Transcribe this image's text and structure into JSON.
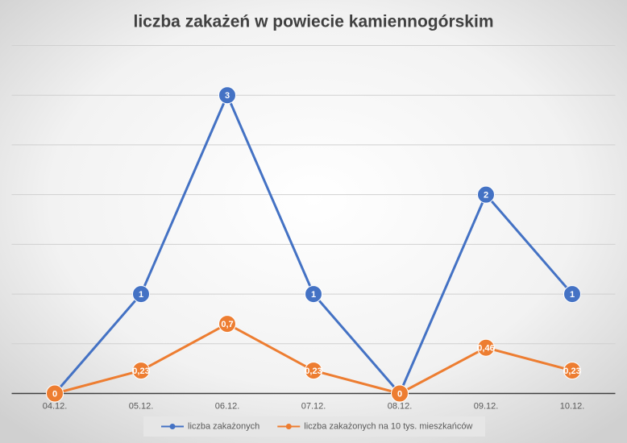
{
  "chart_data": {
    "type": "line",
    "title": "liczba zakażeń w powiecie kamiennogórskim",
    "categories": [
      "04.12.",
      "05.12.",
      "06.12.",
      "07.12.",
      "08.12.",
      "09.12.",
      "10.12."
    ],
    "series": [
      {
        "name": "liczba zakażonych",
        "color": "#4472c4",
        "values": [
          0,
          1,
          3,
          1,
          0,
          2,
          1
        ]
      },
      {
        "name": "liczba zakażonych na 10 tys. mieszkańców",
        "color": "#ed7d31",
        "values": [
          0,
          0.23,
          0.7,
          0.23,
          0,
          0.46,
          0.23
        ],
        "value_labels": [
          "0",
          "0,23",
          "0,7",
          "0,23",
          "0",
          "0,46",
          "0,23"
        ]
      }
    ],
    "ylim": [
      0,
      3.5
    ],
    "yticks": [
      0,
      0.5,
      1,
      1.5,
      2,
      2.5,
      3,
      3.5
    ],
    "grid": true,
    "legend": "bottom"
  }
}
